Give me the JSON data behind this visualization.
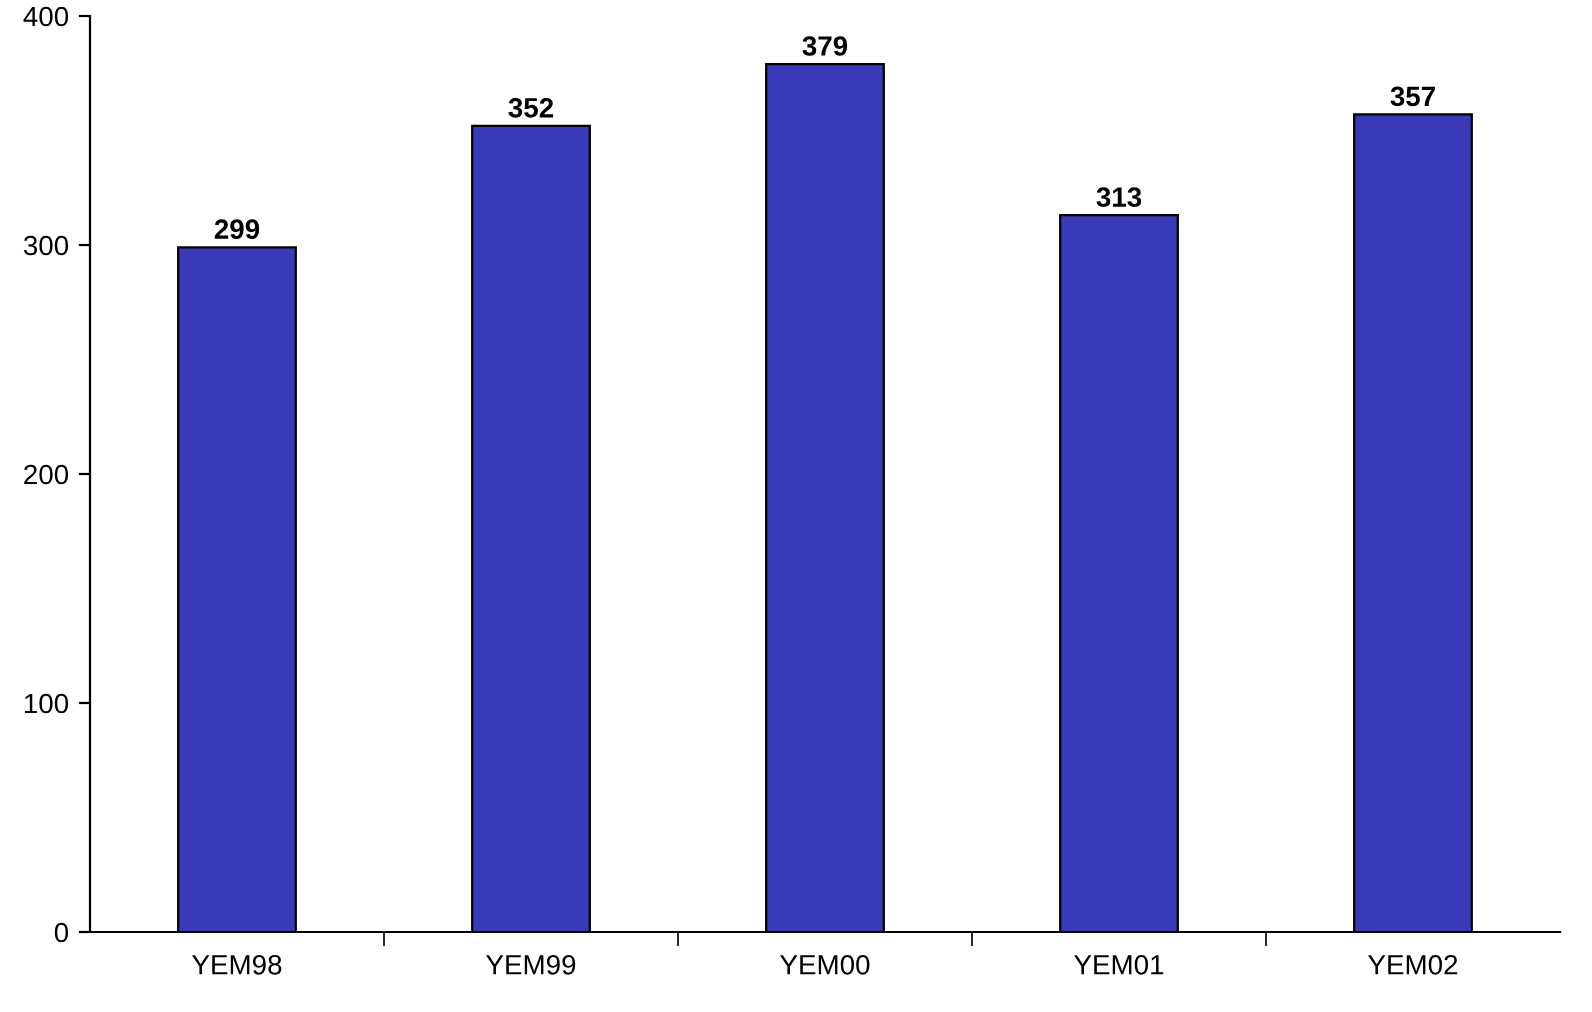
{
  "chart_data": {
    "type": "bar",
    "categories": [
      "YEM98",
      "YEM99",
      "YEM00",
      "YEM01",
      "YEM02"
    ],
    "values": [
      299,
      352,
      379,
      313,
      357
    ],
    "color": "#3a3ab8",
    "ylim": [
      0,
      400
    ],
    "yticks": [
      0,
      100,
      200,
      300,
      400
    ],
    "data_labels": true,
    "grid": false,
    "legend": false
  }
}
